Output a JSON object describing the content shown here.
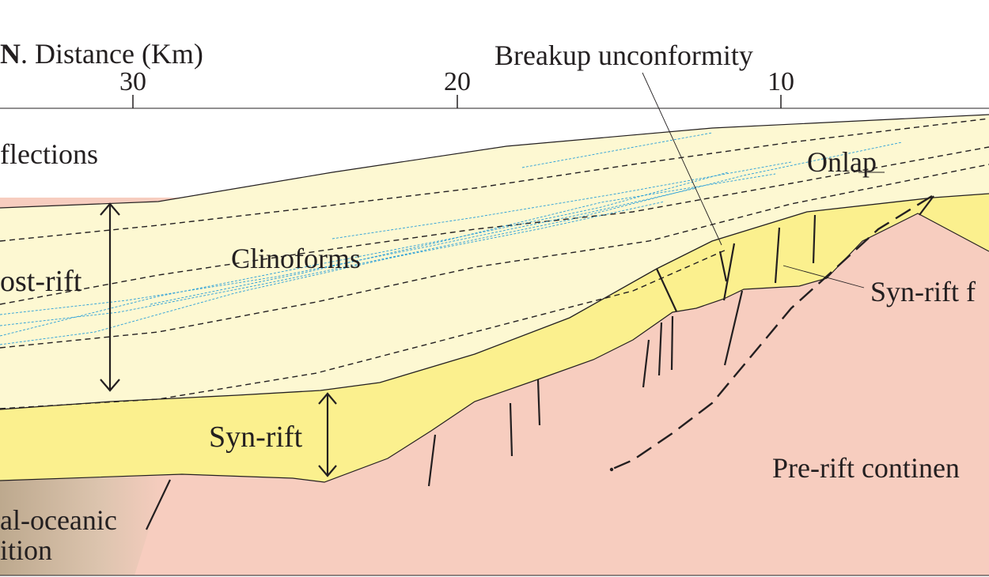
{
  "header": {
    "direction_letter": "N",
    "axis_title": ". Distance (Km)",
    "ticks": [
      "30",
      "20",
      "10"
    ]
  },
  "labels": {
    "breakup_unconformity": "Breakup unconformity",
    "reflections": "flections",
    "onlap": "Onlap",
    "clinoforms": "Clinoforms",
    "post_rift": "ost-rift",
    "syn_rift_fill": "Syn-rift f",
    "syn_rift": "Syn-rift",
    "pre_rift": "Pre-rift continen",
    "transition_line1": "al-oceanic",
    "transition_line2": "ition"
  },
  "colors": {
    "post_rift_fill": "#fdf8d2",
    "syn_rift_fill": "#fbf08e",
    "pre_rift_fill": "#f7cdbf",
    "transition_fill": "#c7b298",
    "clinoform_lines": "#2a9fd8",
    "lines": "#231f20"
  }
}
